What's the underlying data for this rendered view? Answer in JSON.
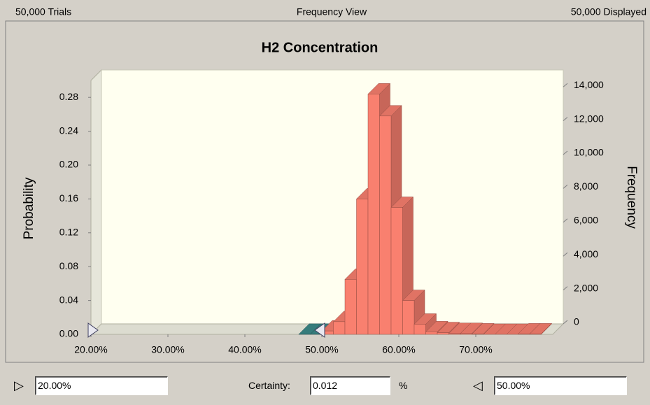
{
  "header": {
    "trials": "50,000 Trials",
    "view": "Frequency View",
    "displayed": "50,000 Displayed"
  },
  "chart_data": {
    "type": "histogram",
    "title": "H2 Concentration",
    "ylabel": "Probability",
    "y2label": "Frequency",
    "bins": [
      47,
      48.5,
      50,
      51.5,
      53,
      54.5,
      56,
      57.5,
      59,
      60.5,
      62,
      63.5,
      65,
      66.5,
      68,
      69.5,
      71,
      72.5,
      74,
      75.5,
      77,
      78.5
    ],
    "values": [
      0.0001,
      0.0001,
      0.004,
      0.015,
      0.065,
      0.16,
      0.284,
      0.258,
      0.15,
      0.04,
      0.012,
      0.003,
      0.002,
      0.001,
      0.001,
      0.0005,
      0,
      0,
      0,
      0.0005,
      0.0005
    ],
    "bar_colors": [
      "#3c8a8a",
      "#3c8a8a",
      "#f9806f",
      "#f9806f",
      "#f9806f",
      "#f9806f",
      "#f9806f",
      "#f9806f",
      "#f9806f",
      "#f9806f",
      "#f9806f",
      "#f9806f",
      "#f9806f",
      "#f9806f",
      "#f9806f",
      "#f9806f",
      "#f9806f",
      "#f9806f",
      "#f9806f",
      "#f9806f",
      "#f9806f"
    ],
    "xlim": [
      20,
      80
    ],
    "xticks": [
      {
        "value": 20,
        "label": "20.00%"
      },
      {
        "value": 30,
        "label": "30.00%"
      },
      {
        "value": 40,
        "label": "40.00%"
      },
      {
        "value": 50,
        "label": "50.00%"
      },
      {
        "value": 60,
        "label": "60.00%"
      },
      {
        "value": 70,
        "label": "70.00%"
      }
    ],
    "ylim": [
      0,
      0.3
    ],
    "yticks": [
      {
        "value": 0,
        "label": "0.00"
      },
      {
        "value": 0.04,
        "label": "0.04"
      },
      {
        "value": 0.08,
        "label": "0.08"
      },
      {
        "value": 0.12,
        "label": "0.12"
      },
      {
        "value": 0.16,
        "label": "0.16"
      },
      {
        "value": 0.2,
        "label": "0.20"
      },
      {
        "value": 0.24,
        "label": "0.24"
      },
      {
        "value": 0.28,
        "label": "0.28"
      }
    ],
    "y2lim": [
      0,
      15000
    ],
    "y2ticks": [
      0,
      {
        "value": 2000,
        "label": "2,000"
      },
      {
        "value": 4000,
        "label": "4,000"
      },
      {
        "value": 6000,
        "label": "6,000"
      },
      {
        "value": 8000,
        "label": "8,000"
      },
      {
        "value": 10000,
        "label": "10,000"
      },
      {
        "value": 12000,
        "label": "12,000"
      },
      {
        "value": 14000,
        "label": "14,000"
      }
    ]
  },
  "controls": {
    "lower": "20.00%",
    "certainty_label": "Certainty:",
    "certainty": "0.012",
    "unit": "%",
    "upper": "50.00%"
  }
}
